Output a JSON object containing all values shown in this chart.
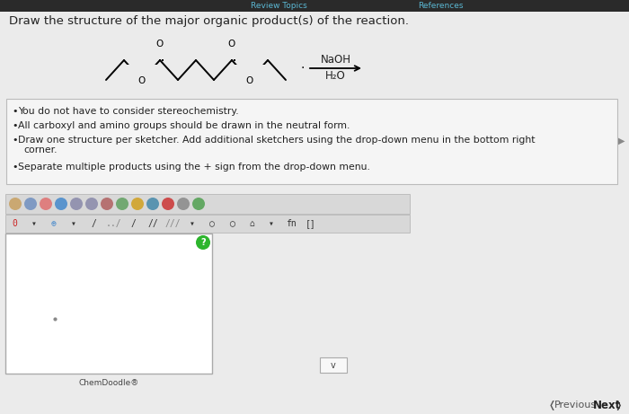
{
  "title_text": "Draw the structure of the major organic product(s) of the reaction.",
  "reagent_line1": "NaOH",
  "reagent_line2": "H₂O",
  "bullet_points": [
    "You do not have to consider stereochemistry.",
    "All carboxyl and amino groups should be drawn in the neutral form.",
    "Draw one structure per sketcher. Add additional sketchers using the drop-down menu in the bottom right",
    "corner.",
    "Separate multiple products using the + sign from the drop-down menu."
  ],
  "chemdoodle_label": "ChemDoodle®",
  "nav_previous": "Previous",
  "nav_next": "Next",
  "review_topics": "Review Topics",
  "references": "References",
  "bg_color": "#ebebeb",
  "white": "#ffffff",
  "box_border": "#cccccc",
  "text_color": "#222222",
  "dark_bar_color": "#2a2a2a",
  "green_button_color": "#2db52d",
  "sketcher_border": "#aaaaaa",
  "toolbar_bg": "#e0e0e0",
  "cyan_link": "#5bb8d4"
}
